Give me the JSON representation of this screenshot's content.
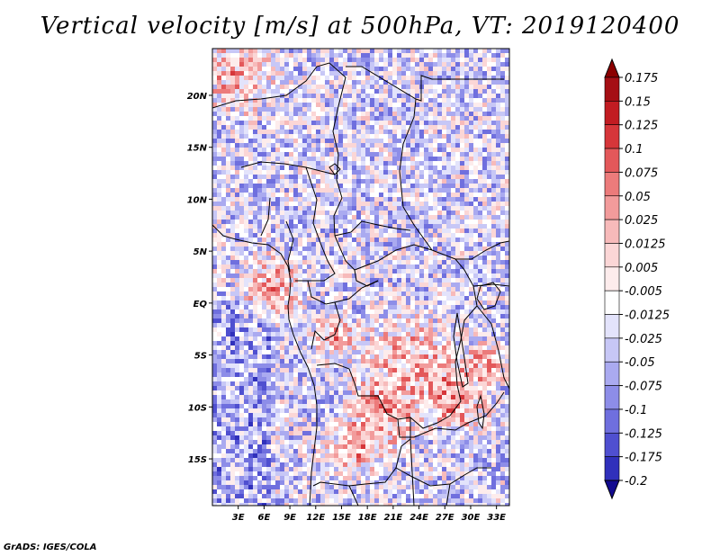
{
  "title": "Vertical velocity [m/s] at 500hPa, VT: 2019120400",
  "footer": "GrADS: IGES/COLA",
  "map": {
    "lat_range": [
      -19.5,
      24.5
    ],
    "lon_range": [
      0,
      34.5
    ],
    "lat_ticks": [
      {
        "value": 20,
        "label": "20N"
      },
      {
        "value": 15,
        "label": "15N"
      },
      {
        "value": 10,
        "label": "10N"
      },
      {
        "value": 5,
        "label": "5N"
      },
      {
        "value": 0,
        "label": "EQ"
      },
      {
        "value": -5,
        "label": "5S"
      },
      {
        "value": -10,
        "label": "10S"
      },
      {
        "value": -15,
        "label": "15S"
      }
    ],
    "lon_ticks": [
      {
        "value": 3,
        "label": "3E"
      },
      {
        "value": 6,
        "label": "6E"
      },
      {
        "value": 9,
        "label": "9E"
      },
      {
        "value": 12,
        "label": "12E"
      },
      {
        "value": 15,
        "label": "15E"
      },
      {
        "value": 18,
        "label": "18E"
      },
      {
        "value": 21,
        "label": "21E"
      },
      {
        "value": 24,
        "label": "24E"
      },
      {
        "value": 27,
        "label": "27E"
      },
      {
        "value": 30,
        "label": "30E"
      },
      {
        "value": 33,
        "label": "33E"
      }
    ]
  },
  "colorbar": {
    "levels": [
      {
        "label": "0.175",
        "color": "#a50f15"
      },
      {
        "label": "0.15",
        "color": "#c21c22"
      },
      {
        "label": "0.125",
        "color": "#d6363a"
      },
      {
        "label": "0.1",
        "color": "#e3585a"
      },
      {
        "label": "0.075",
        "color": "#ec7b7b"
      },
      {
        "label": "0.05",
        "color": "#f29b9b"
      },
      {
        "label": "0.025",
        "color": "#f7baba"
      },
      {
        "label": "0.0125",
        "color": "#fbd6d6"
      },
      {
        "label": "0.005",
        "color": "#fdecec"
      },
      {
        "label": "-0.005",
        "color": "#ffffff"
      },
      {
        "label": "-0.0125",
        "color": "#e3e3fb"
      },
      {
        "label": "-0.025",
        "color": "#c7c7f6"
      },
      {
        "label": "-0.05",
        "color": "#aaaaf0"
      },
      {
        "label": "-0.075",
        "color": "#8d8de8"
      },
      {
        "label": "-0.1",
        "color": "#6f6fde"
      },
      {
        "label": "-0.125",
        "color": "#4f4fd0"
      },
      {
        "label": "-0.175",
        "color": "#3030bb"
      },
      {
        "label": "-0.2",
        "color": "#1c1ca2"
      }
    ],
    "top_arrow_color": "#8b0000",
    "bottom_arrow_color": "#120a8f"
  }
}
